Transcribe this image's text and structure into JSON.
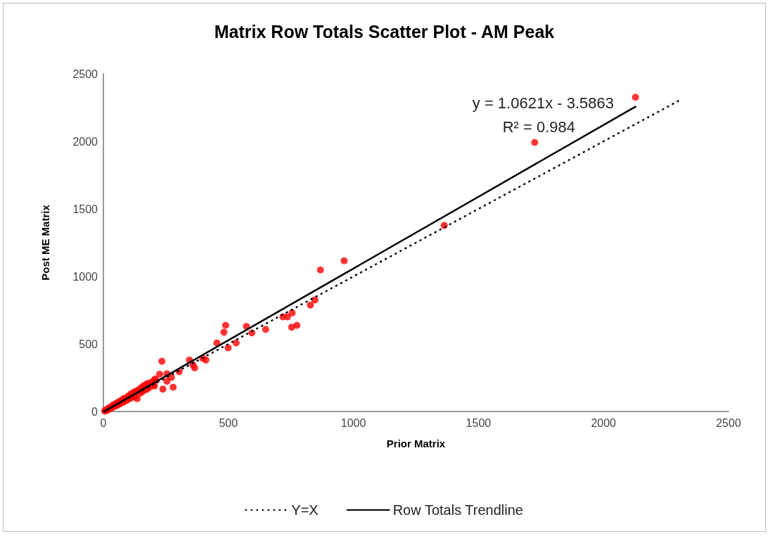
{
  "chart_data": {
    "type": "scatter",
    "title": "Matrix Row Totals Scatter Plot - AM Peak",
    "xlabel": "Prior Matrix",
    "ylabel": "Post ME Matrix",
    "xlim": [
      0,
      2500
    ],
    "xticks": [
      0,
      500,
      1000,
      1500,
      2000,
      2500
    ],
    "ylim": [
      0,
      2500
    ],
    "yticks": [
      0,
      500,
      1000,
      1500,
      2000,
      2500
    ],
    "grid": false,
    "legend": "bottom",
    "marker": "circle",
    "annotations": [
      "y = 1.0621x - 3.5863",
      "R² = 0.984"
    ],
    "series": [
      {
        "color": "#ff0000",
        "x": [
          5,
          10,
          15,
          20,
          25,
          30,
          35,
          40,
          45,
          50,
          55,
          60,
          65,
          70,
          75,
          80,
          85,
          90,
          95,
          100,
          105,
          110,
          115,
          120,
          125,
          130,
          135,
          140,
          145,
          150,
          155,
          160,
          165,
          170,
          175,
          180,
          185,
          195,
          200,
          210,
          204,
          206,
          225,
          234,
          238,
          254,
          254,
          272,
          279,
          303,
          344,
          358,
          365,
          398,
          410,
          454,
          482,
          489,
          499,
          531,
          572,
          594,
          649,
          718,
          736,
          755,
          753,
          774,
          828,
          846,
          868,
          963,
          1363,
          1725,
          2128
        ],
        "values": [
          3,
          12,
          8,
          25,
          18,
          35,
          28,
          50,
          38,
          60,
          45,
          70,
          55,
          80,
          65,
          95,
          75,
          100,
          85,
          115,
          95,
          130,
          105,
          140,
          110,
          150,
          95,
          160,
          135,
          175,
          145,
          190,
          160,
          200,
          165,
          210,
          180,
          220,
          195,
          230,
          189,
          241,
          276,
          372,
          166,
          224,
          279,
          253,
          180,
          295,
          381,
          346,
          323,
          393,
          381,
          508,
          587,
          638,
          472,
          508,
          630,
          582,
          608,
          701,
          701,
          730,
          624,
          638,
          788,
          826,
          1048,
          1116,
          1378,
          1992,
          2327
        ]
      },
      {
        "type": "line",
        "name": "Y=X",
        "color": "#000000",
        "line_style": "dotted",
        "marker": "none",
        "x": [
          0,
          2300
        ],
        "values": [
          0,
          2300
        ]
      },
      {
        "type": "line",
        "name": "Row Totals Trendline",
        "color": "#000000",
        "line_style": "solid",
        "marker": "none",
        "x": [
          5,
          2128
        ],
        "values": [
          2,
          2257
        ]
      }
    ]
  }
}
